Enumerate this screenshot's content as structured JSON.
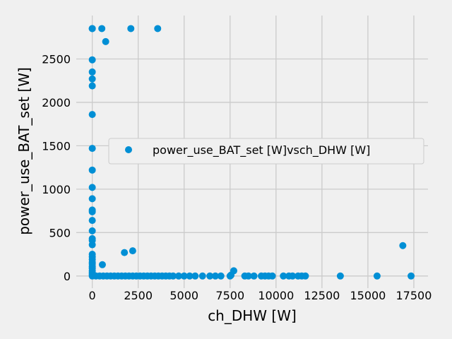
{
  "chart_data": {
    "type": "scatter",
    "title": "",
    "xlabel": "ch_DHW [W]",
    "ylabel": "power_use_BAT_set [W]",
    "xlim": [
      -870,
      18270
    ],
    "ylim": [
      -140,
      3000
    ],
    "x_ticks": [
      0,
      2500,
      5000,
      7500,
      10000,
      12500,
      15000,
      17500
    ],
    "y_ticks": [
      0,
      500,
      1000,
      1500,
      2000,
      2500
    ],
    "grid": true,
    "legend_position": "center-right",
    "colors": {
      "series": "#008fd5",
      "background": "#f0f0f0",
      "grid": "#cbcbcb"
    },
    "series": [
      {
        "name": "power_use_BAT_set [W]vsch_DHW [W]",
        "points": [
          [
            0,
            2850
          ],
          [
            0,
            2850
          ],
          [
            520,
            2850
          ],
          [
            2100,
            2850
          ],
          [
            3560,
            2850
          ],
          [
            730,
            2700
          ],
          [
            0,
            2490
          ],
          [
            0,
            2350
          ],
          [
            0,
            2270
          ],
          [
            0,
            2190
          ],
          [
            0,
            1860
          ],
          [
            0,
            1470
          ],
          [
            0,
            1220
          ],
          [
            0,
            1020
          ],
          [
            0,
            890
          ],
          [
            0,
            760
          ],
          [
            0,
            740
          ],
          [
            0,
            640
          ],
          [
            0,
            520
          ],
          [
            0,
            430
          ],
          [
            0,
            410
          ],
          [
            0,
            360
          ],
          [
            0,
            250
          ],
          [
            0,
            220
          ],
          [
            0,
            190
          ],
          [
            0,
            160
          ],
          [
            0,
            140
          ],
          [
            0,
            110
          ],
          [
            0,
            90
          ],
          [
            0,
            60
          ],
          [
            0,
            40
          ],
          [
            0,
            20
          ],
          [
            0,
            0
          ],
          [
            1750,
            270
          ],
          [
            2200,
            290
          ],
          [
            550,
            130
          ],
          [
            16900,
            350
          ],
          [
            7700,
            60
          ],
          [
            7550,
            10
          ],
          [
            200,
            0
          ],
          [
            400,
            0
          ],
          [
            600,
            0
          ],
          [
            800,
            0
          ],
          [
            1000,
            0
          ],
          [
            1200,
            0
          ],
          [
            1400,
            0
          ],
          [
            1600,
            0
          ],
          [
            1800,
            0
          ],
          [
            2000,
            0
          ],
          [
            2200,
            0
          ],
          [
            2400,
            0
          ],
          [
            2600,
            0
          ],
          [
            2800,
            0
          ],
          [
            3000,
            0
          ],
          [
            3200,
            0
          ],
          [
            3400,
            0
          ],
          [
            3600,
            0
          ],
          [
            3800,
            0
          ],
          [
            4000,
            0
          ],
          [
            4200,
            0
          ],
          [
            4400,
            0
          ],
          [
            4700,
            0
          ],
          [
            5000,
            0
          ],
          [
            5300,
            0
          ],
          [
            5600,
            0
          ],
          [
            6000,
            0
          ],
          [
            6400,
            0
          ],
          [
            6700,
            0
          ],
          [
            7000,
            0
          ],
          [
            7500,
            0
          ],
          [
            8300,
            0
          ],
          [
            8500,
            0
          ],
          [
            8800,
            0
          ],
          [
            9200,
            0
          ],
          [
            9400,
            0
          ],
          [
            9600,
            0
          ],
          [
            9800,
            0
          ],
          [
            10400,
            0
          ],
          [
            10700,
            0
          ],
          [
            10900,
            0
          ],
          [
            11200,
            0
          ],
          [
            11400,
            0
          ],
          [
            11600,
            0
          ],
          [
            13500,
            0
          ],
          [
            15500,
            0
          ],
          [
            17350,
            0
          ]
        ]
      }
    ]
  }
}
